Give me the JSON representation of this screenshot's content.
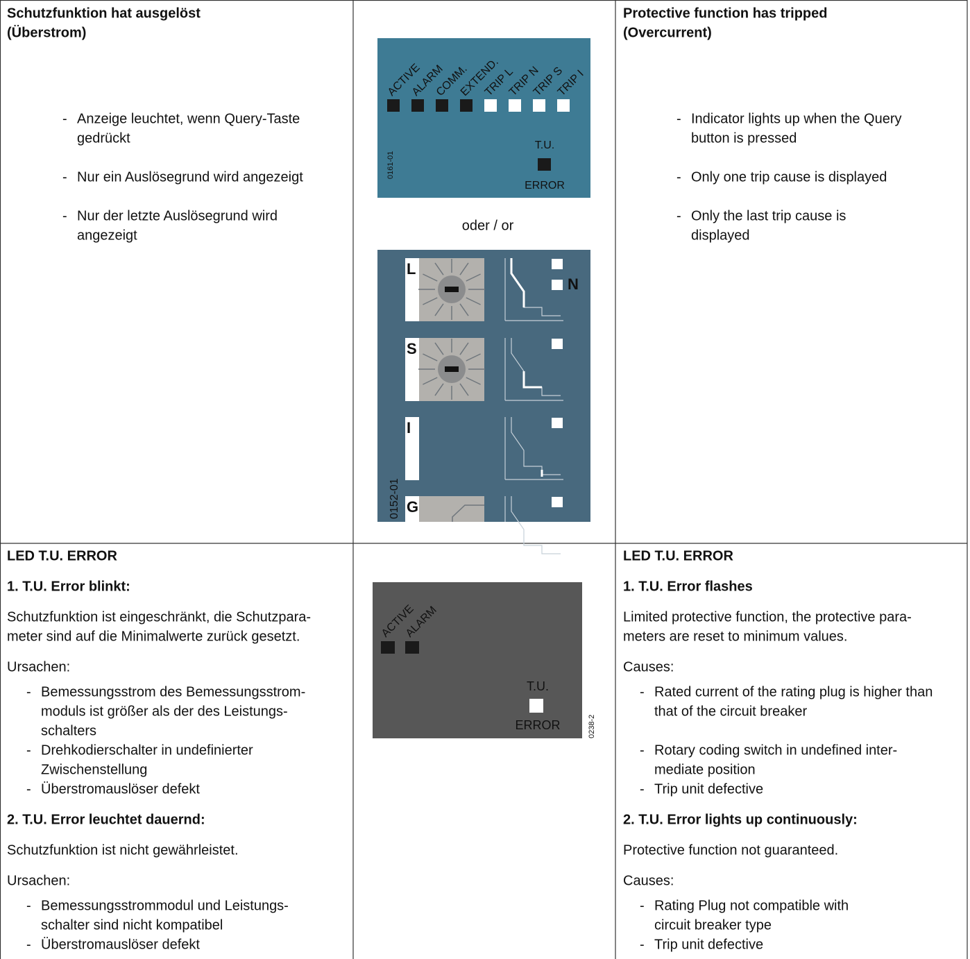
{
  "table": {
    "rows": [
      {
        "de": {
          "title": [
            "Schutzfunktion hat ausgelöst",
            "(Überstrom)"
          ],
          "items": [
            [
              "Anzeige leuchtet, wenn Query-Taste",
              "gedrückt"
            ],
            [
              "Nur ein Auslösegrund wird angezeigt"
            ],
            [
              "Nur der letzte Auslösegrund wird",
              "angezeigt"
            ]
          ]
        },
        "figure": {
          "indicator_panel": {
            "leds": [
              "ACTIVE",
              "ALARM",
              "COMM.",
              "EXTEND.",
              "TRIP L",
              "TRIP N",
              "TRIP S",
              "TRIP I"
            ],
            "tu_label": "T.U.",
            "error_label": "ERROR",
            "code": "0161-01"
          },
          "separator": "oder / or",
          "settings_panel": {
            "letters": [
              "L",
              "S",
              "I",
              "G"
            ],
            "extra_letter": "N",
            "code": "0152-01"
          }
        },
        "en": {
          "title": [
            "Protective function has tripped",
            "(Overcurrent)"
          ],
          "items": [
            [
              "Indicator lights up when the Query",
              "button is pressed"
            ],
            [
              "Only one trip cause is displayed"
            ],
            [
              "Only the last trip cause is",
              "displayed"
            ]
          ]
        }
      },
      {
        "de": {
          "title": "LED T.U. ERROR",
          "sections": [
            {
              "title": "1. T.U. Error blinkt:",
              "text": [
                "Schutzfunktion ist eingeschränkt, die Schutzpara-",
                "meter sind auf die Minimalwerte zurück gesetzt."
              ],
              "causes_label": "Ursachen:",
              "items": [
                [
                  "Bemessungsstrom des Bemessungsstrom-",
                  "moduls ist größer als der des Leistungs-",
                  "schalters"
                ],
                [
                  "Drehkodierschalter in undefinierter",
                  "Zwischenstellung"
                ],
                [
                  "Überstromauslöser defekt"
                ]
              ]
            },
            {
              "title": "2. T.U. Error leuchtet dauernd:",
              "text": [
                "Schutzfunktion ist nicht gewährleistet."
              ],
              "causes_label": "Ursachen:",
              "items": [
                [
                  "Bemessungsstrommodul und Leistungs-",
                  "schalter sind nicht kompatibel"
                ],
                [
                  "Überstromauslöser defekt"
                ]
              ]
            }
          ]
        },
        "figure": {
          "leds": [
            "ACTIVE",
            "ALARM"
          ],
          "tu_label": "T.U.",
          "error_label": "ERROR",
          "code": "0238-2"
        },
        "en": {
          "title": "LED T.U. ERROR",
          "sections": [
            {
              "title": "1. T.U. Error flashes",
              "text": [
                "Limited protective function, the protective para-",
                "meters are reset to minimum values."
              ],
              "causes_label": "Causes:",
              "items": [
                [
                  "Rated current of the rating plug is higher than",
                  "that of the circuit breaker"
                ],
                [
                  "Rotary coding switch in undefined inter-",
                  "mediate position"
                ],
                [
                  "Trip unit defective"
                ]
              ]
            },
            {
              "title": "2. T.U. Error lights up continuously:",
              "text": [
                "Protective function not guaranteed."
              ],
              "causes_label": "Causes:",
              "items": [
                [
                  "Rating Plug not compatible with",
                  "circuit breaker type"
                ],
                [
                  "Trip unit defective"
                ]
              ]
            }
          ]
        }
      }
    ]
  }
}
